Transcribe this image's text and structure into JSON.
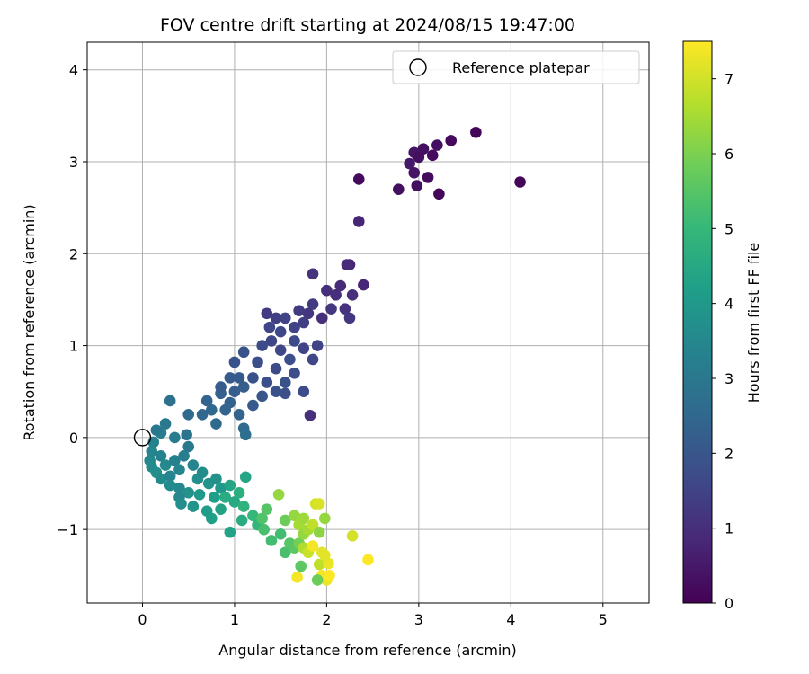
{
  "chart_data": {
    "type": "scatter",
    "title": "FOV centre drift starting at 2024/08/15 19:47:00",
    "xlabel": "Angular distance from reference (arcmin)",
    "ylabel": "Rotation from reference (arcmin)",
    "xlim": [
      -0.6,
      5.5
    ],
    "ylim": [
      -1.8,
      4.3
    ],
    "xticks": [
      0,
      1,
      2,
      3,
      4,
      5
    ],
    "yticks": [
      -1,
      0,
      1,
      2,
      3,
      4
    ],
    "grid": true,
    "legend": {
      "placement": "top-right",
      "entries": [
        "Reference platepar"
      ]
    },
    "reference_point": {
      "x": 0,
      "y": 0
    },
    "colorbar": {
      "label": "Hours from first FF file",
      "min": 0,
      "max": 7.5,
      "ticks": [
        0,
        1,
        2,
        3,
        4,
        5,
        6,
        7
      ],
      "colormap": "viridis"
    },
    "points": [
      [
        3.62,
        3.32,
        0.1
      ],
      [
        3.35,
        3.23,
        0.2
      ],
      [
        3.2,
        3.18,
        0.3
      ],
      [
        3.15,
        3.07,
        0.2
      ],
      [
        3.05,
        3.14,
        0.3
      ],
      [
        2.95,
        3.1,
        0.4
      ],
      [
        3.0,
        3.05,
        0.3
      ],
      [
        2.9,
        2.98,
        0.5
      ],
      [
        2.95,
        2.88,
        0.4
      ],
      [
        3.1,
        2.83,
        0.2
      ],
      [
        2.98,
        2.74,
        0.3
      ],
      [
        3.22,
        2.65,
        0.1
      ],
      [
        2.78,
        2.7,
        0.3
      ],
      [
        2.35,
        2.81,
        0.2
      ],
      [
        4.1,
        2.78,
        0.1
      ],
      [
        2.35,
        2.35,
        0.8
      ],
      [
        2.25,
        1.88,
        0.8
      ],
      [
        2.22,
        1.88,
        0.9
      ],
      [
        2.4,
        1.66,
        0.8
      ],
      [
        2.28,
        1.55,
        1.0
      ],
      [
        2.15,
        1.65,
        0.9
      ],
      [
        2.1,
        1.55,
        1.0
      ],
      [
        2.2,
        1.4,
        1.1
      ],
      [
        2.0,
        1.6,
        1.0
      ],
      [
        1.85,
        1.78,
        1.1
      ],
      [
        2.05,
        1.4,
        1.2
      ],
      [
        2.25,
        1.3,
        1.2
      ],
      [
        1.95,
        1.3,
        1.0
      ],
      [
        1.85,
        1.45,
        1.3
      ],
      [
        1.8,
        1.35,
        1.2
      ],
      [
        1.75,
        1.25,
        1.4
      ],
      [
        1.7,
        1.38,
        1.3
      ],
      [
        1.65,
        1.2,
        1.5
      ],
      [
        1.55,
        1.3,
        1.5
      ],
      [
        1.5,
        1.15,
        1.6
      ],
      [
        1.45,
        1.3,
        1.4
      ],
      [
        1.4,
        1.05,
        1.6
      ],
      [
        1.38,
        1.2,
        1.6
      ],
      [
        1.35,
        1.35,
        1.3
      ],
      [
        1.3,
        1.0,
        1.7
      ],
      [
        1.5,
        0.95,
        1.6
      ],
      [
        1.65,
        1.05,
        1.7
      ],
      [
        1.75,
        0.97,
        1.5
      ],
      [
        1.9,
        1.0,
        1.5
      ],
      [
        1.85,
        0.85,
        1.6
      ],
      [
        1.6,
        0.85,
        1.8
      ],
      [
        1.45,
        0.75,
        1.7
      ],
      [
        1.25,
        0.82,
        1.8
      ],
      [
        1.2,
        0.65,
        1.9
      ],
      [
        1.35,
        0.6,
        1.8
      ],
      [
        1.55,
        0.6,
        1.9
      ],
      [
        1.65,
        0.7,
        1.8
      ],
      [
        1.75,
        0.5,
        1.7
      ],
      [
        1.55,
        0.48,
        1.8
      ],
      [
        1.45,
        0.5,
        1.9
      ],
      [
        1.3,
        0.45,
        2.0
      ],
      [
        1.2,
        0.35,
        2.1
      ],
      [
        1.1,
        0.55,
        2.2
      ],
      [
        1.05,
        0.65,
        2.1
      ],
      [
        1.0,
        0.5,
        2.2
      ],
      [
        0.95,
        0.38,
        2.3
      ],
      [
        0.85,
        0.48,
        2.3
      ],
      [
        0.9,
        0.3,
        2.4
      ],
      [
        0.75,
        0.3,
        2.5
      ],
      [
        0.7,
        0.4,
        2.4
      ],
      [
        0.8,
        0.15,
        2.6
      ],
      [
        0.65,
        0.25,
        2.5
      ],
      [
        0.95,
        0.65,
        2.1
      ],
      [
        0.85,
        0.55,
        2.2
      ],
      [
        1.0,
        0.82,
        1.9
      ],
      [
        1.1,
        0.93,
        1.9
      ],
      [
        1.05,
        0.25,
        2.4
      ],
      [
        1.1,
        0.1,
        2.6
      ],
      [
        1.12,
        0.03,
        2.7
      ],
      [
        1.82,
        0.24,
        1.0
      ],
      [
        0.5,
        0.25,
        2.6
      ],
      [
        0.3,
        0.4,
        2.8
      ],
      [
        0.25,
        0.15,
        3.0
      ],
      [
        0.2,
        0.05,
        3.2
      ],
      [
        0.15,
        0.08,
        3.0
      ],
      [
        0.35,
        0.0,
        3.1
      ],
      [
        0.12,
        -0.05,
        3.3
      ],
      [
        0.1,
        -0.15,
        3.4
      ],
      [
        0.08,
        -0.25,
        3.5
      ],
      [
        0.1,
        -0.32,
        3.6
      ],
      [
        0.2,
        -0.2,
        3.3
      ],
      [
        0.25,
        -0.3,
        3.5
      ],
      [
        0.15,
        -0.38,
        3.7
      ],
      [
        0.2,
        -0.45,
        3.6
      ],
      [
        0.3,
        -0.42,
        3.4
      ],
      [
        0.35,
        -0.25,
        3.3
      ],
      [
        0.4,
        -0.35,
        3.4
      ],
      [
        0.3,
        -0.52,
        3.6
      ],
      [
        0.4,
        -0.55,
        3.5
      ],
      [
        0.45,
        -0.2,
        3.2
      ],
      [
        0.5,
        -0.1,
        3.0
      ],
      [
        0.48,
        0.03,
        2.9
      ],
      [
        0.55,
        -0.3,
        3.4
      ],
      [
        0.6,
        -0.45,
        3.7
      ],
      [
        0.5,
        -0.6,
        3.8
      ],
      [
        0.55,
        -0.75,
        3.9
      ],
      [
        0.4,
        -0.65,
        3.5
      ],
      [
        0.42,
        -0.72,
        3.7
      ],
      [
        0.62,
        -0.62,
        4.0
      ],
      [
        0.65,
        -0.38,
        3.6
      ],
      [
        0.72,
        -0.5,
        3.9
      ],
      [
        0.78,
        -0.65,
        4.2
      ],
      [
        0.7,
        -0.8,
        4.1
      ],
      [
        0.75,
        -0.88,
        4.2
      ],
      [
        0.85,
        -0.78,
        4.3
      ],
      [
        0.8,
        -0.45,
        3.8
      ],
      [
        0.85,
        -0.55,
        4.0
      ],
      [
        0.9,
        -0.65,
        4.6
      ],
      [
        0.95,
        -0.52,
        4.4
      ],
      [
        1.0,
        -0.7,
        4.5
      ],
      [
        1.05,
        -0.6,
        4.7
      ],
      [
        1.1,
        -0.75,
        4.8
      ],
      [
        1.08,
        -0.9,
        4.6
      ],
      [
        1.12,
        -0.43,
        4.4
      ],
      [
        1.2,
        -0.85,
        5.0
      ],
      [
        1.25,
        -0.95,
        4.9
      ],
      [
        1.3,
        -0.88,
        5.4
      ],
      [
        1.35,
        -0.78,
        5.5
      ],
      [
        1.32,
        -1.0,
        5.3
      ],
      [
        1.4,
        -1.12,
        5.2
      ],
      [
        0.95,
        -1.03,
        4.3
      ],
      [
        1.5,
        -1.05,
        5.2
      ],
      [
        1.55,
        -1.25,
        5.3
      ],
      [
        1.55,
        -0.9,
        5.8
      ],
      [
        1.48,
        -0.62,
        6.3
      ],
      [
        1.65,
        -1.2,
        5.6
      ],
      [
        1.6,
        -1.15,
        5.5
      ],
      [
        1.7,
        -1.15,
        5.9
      ],
      [
        1.72,
        -1.4,
        5.6
      ],
      [
        1.65,
        -0.85,
        6.3
      ],
      [
        1.7,
        -0.95,
        6.5
      ],
      [
        1.75,
        -0.88,
        6.4
      ],
      [
        1.75,
        -1.05,
        6.3
      ],
      [
        1.8,
        -1.0,
        6.5
      ],
      [
        1.85,
        -0.95,
        6.8
      ],
      [
        1.75,
        -1.2,
        6.6
      ],
      [
        1.8,
        -1.25,
        6.9
      ],
      [
        1.88,
        -0.72,
        7.0
      ],
      [
        1.92,
        -0.72,
        7.1
      ],
      [
        1.92,
        -1.03,
        6.2
      ],
      [
        1.95,
        -1.25,
        7.2
      ],
      [
        1.98,
        -0.88,
        6.3
      ],
      [
        1.92,
        -1.38,
        6.8
      ],
      [
        2.02,
        -1.37,
        7.3
      ],
      [
        1.95,
        -1.5,
        7.4
      ],
      [
        2.0,
        -1.55,
        7.3
      ],
      [
        1.9,
        -1.55,
        5.8
      ],
      [
        1.68,
        -1.52,
        7.4
      ],
      [
        2.03,
        -1.5,
        7.5
      ],
      [
        2.45,
        -1.33,
        7.5
      ],
      [
        2.28,
        -1.07,
        7.0
      ],
      [
        1.85,
        -1.18,
        7.4
      ],
      [
        1.98,
        -1.28,
        7.2
      ]
    ]
  }
}
